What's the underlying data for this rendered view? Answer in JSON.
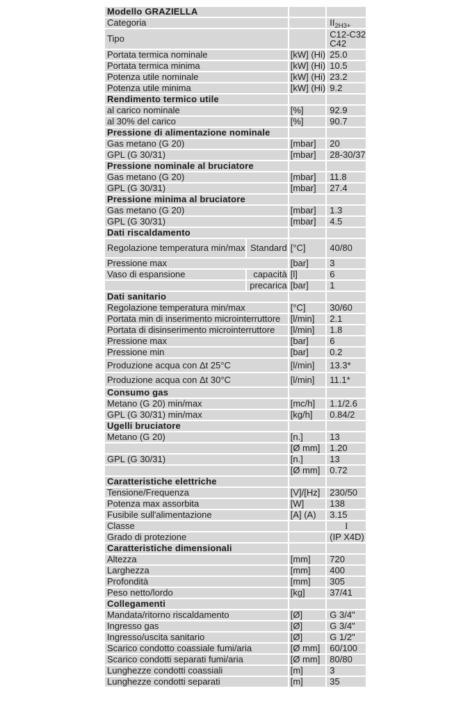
{
  "table": {
    "rows": [
      {
        "type": "section",
        "label": "Modello GRAZIELLA"
      },
      {
        "label": "Categoria",
        "unit": "",
        "value": "II",
        "value_sub": "2H3+"
      },
      {
        "label": "Tipo",
        "unit": "",
        "value_lines": [
          "C12-C32",
          "C42"
        ],
        "h": 28
      },
      {
        "label": "Portata termica nominale",
        "unit": "[kW] (Hi)",
        "value": "25.0"
      },
      {
        "label": "Portata termica minima",
        "unit": "[kW] (Hi)",
        "value": "10.5"
      },
      {
        "label": "Potenza utile nominale",
        "unit": "[kW] (Hi)",
        "value": "23.2"
      },
      {
        "label": "Potenza utile minima",
        "unit": "[kW] (Hi)",
        "value": "9.2"
      },
      {
        "type": "section",
        "label": "Rendimento termico utile"
      },
      {
        "label": "al carico nominale",
        "unit": "[%]",
        "value": "92.9"
      },
      {
        "label": "al 30% del carico",
        "unit": "[%]",
        "value": "90.7"
      },
      {
        "type": "section",
        "label": "Pressione di alimentazione nominale"
      },
      {
        "label": "Gas metano (G 20)",
        "unit": "[mbar]",
        "value": "20"
      },
      {
        "label": "GPL (G 30/31)",
        "unit": "[mbar]",
        "value": "28-30/37"
      },
      {
        "type": "section",
        "label": "Pressione nominale al bruciatore"
      },
      {
        "label": "Gas metano (G 20)",
        "unit": "[mbar]",
        "value": "11.8"
      },
      {
        "label": "GPL (G 30/31)",
        "unit": "[mbar]",
        "value": "27.4"
      },
      {
        "type": "section",
        "label": "Pressione minima al bruciatore"
      },
      {
        "label": "Gas metano (G 20)",
        "unit": "[mbar]",
        "value": "1.3"
      },
      {
        "label": "GPL (G 30/31)",
        "unit": "[mbar]",
        "value": "4.5"
      },
      {
        "type": "section",
        "label": "Dati riscaldamento"
      },
      {
        "label": "Regolazione temperatura min/max",
        "sublabel": "Standard",
        "unit": "[°C]",
        "value": "40/80",
        "h": 26
      },
      {
        "label": "Pressione max",
        "unit": "[bar]",
        "value": "3"
      },
      {
        "label": "Vaso di espansione",
        "sublabel": "capacità",
        "unit": "[l]",
        "value": "6"
      },
      {
        "label": "",
        "sublabel": "precarica",
        "unit": "[bar]",
        "value": "1"
      },
      {
        "type": "section",
        "label": "Dati sanitario"
      },
      {
        "label": "Regolazione temperatura min/max",
        "unit": "[°C]",
        "value": "30/60"
      },
      {
        "label": "Portata min di inserimento microinterruttore",
        "unit": "[l/min]",
        "value": "2.1"
      },
      {
        "label": "Portata di disinserimento microinterruttore",
        "unit": "[l/min]",
        "value": "1.8"
      },
      {
        "label": "Pressione max",
        "unit": "[bar]",
        "value": "6"
      },
      {
        "label": "Pressione min",
        "unit": "[bar]",
        "value": "0.2"
      },
      {
        "label": "Produzione acqua con Δt 25°C",
        "unit": "[l/min]",
        "value": "13.3*",
        "h": 19
      },
      {
        "label": "Produzione acqua con Δt 30°C",
        "unit": "[l/min]",
        "value": "11.1*",
        "h": 19
      },
      {
        "type": "section",
        "label": "Consumo gas"
      },
      {
        "label": "Metano (G 20) min/max",
        "unit": "[mc/h]",
        "value": "1.1/2.6"
      },
      {
        "label": "GPL (G 30/31) min/max",
        "unit": "[kg/h]",
        "value": "0.84/2"
      },
      {
        "type": "section",
        "label": "Ugelli bruciatore"
      },
      {
        "label": "Metano (G 20)",
        "unit": "[n.]",
        "value": "13"
      },
      {
        "label": "",
        "unit": "[Ø mm]",
        "value": "1.20"
      },
      {
        "label": "GPL (G 30/31)",
        "unit": "[n.]",
        "value": "13"
      },
      {
        "label": "",
        "unit": "[Ø mm]",
        "value": "0.72"
      },
      {
        "type": "section",
        "label": "Caratteristiche elettriche"
      },
      {
        "label": "Tensione/Frequenza",
        "unit": "[V]/[Hz]",
        "value": "230/50"
      },
      {
        "label": "Potenza max assorbita",
        "unit": "[W]",
        "value": "138"
      },
      {
        "label": "Fusibile sull'alimentazione",
        "unit": "[A] (A)",
        "value": "3.15"
      },
      {
        "label": "Classe",
        "unit": "",
        "value": "I",
        "value_align": "center",
        "value_serif": true
      },
      {
        "label": "Grado di protezione",
        "unit": "",
        "value": "(IP X4D)"
      },
      {
        "type": "section",
        "label": "Caratteristiche dimensionali"
      },
      {
        "label": "Altezza",
        "unit": "[mm]",
        "value": "720"
      },
      {
        "label": "Larghezza",
        "unit": "[mm]",
        "value": "400"
      },
      {
        "label": "Profondità",
        "unit": "[mm]",
        "value": "305"
      },
      {
        "label": "Peso netto/lordo",
        "unit": "[kg]",
        "value": "37/41"
      },
      {
        "type": "section",
        "label": "Collegamenti"
      },
      {
        "label": "Mandata/ritorno riscaldamento",
        "unit": "[Ø]",
        "value": "G 3/4\""
      },
      {
        "label": "Ingresso gas",
        "unit": "[Ø]",
        "value": "G 3/4\""
      },
      {
        "label": "Ingresso/uscita sanitario",
        "unit": "[Ø]",
        "value": "G 1/2\""
      },
      {
        "label": "Scarico condotto coassiale fumi/aria",
        "unit": "[Ø mm]",
        "value": "60/100"
      },
      {
        "label": "Scarico condotti separati fumi/aria",
        "unit": "[Ø mm]",
        "value": "80/80"
      },
      {
        "label": "Lunghezze condotti coassiali",
        "unit": "[m]",
        "value": "3"
      },
      {
        "label": "Lunghezze condotti separati",
        "unit": "[m]",
        "value": "35"
      }
    ],
    "colors": {
      "cell_background": "#d7d7d7",
      "page_background": "#ffffff",
      "text": "#1b1b1b"
    }
  }
}
